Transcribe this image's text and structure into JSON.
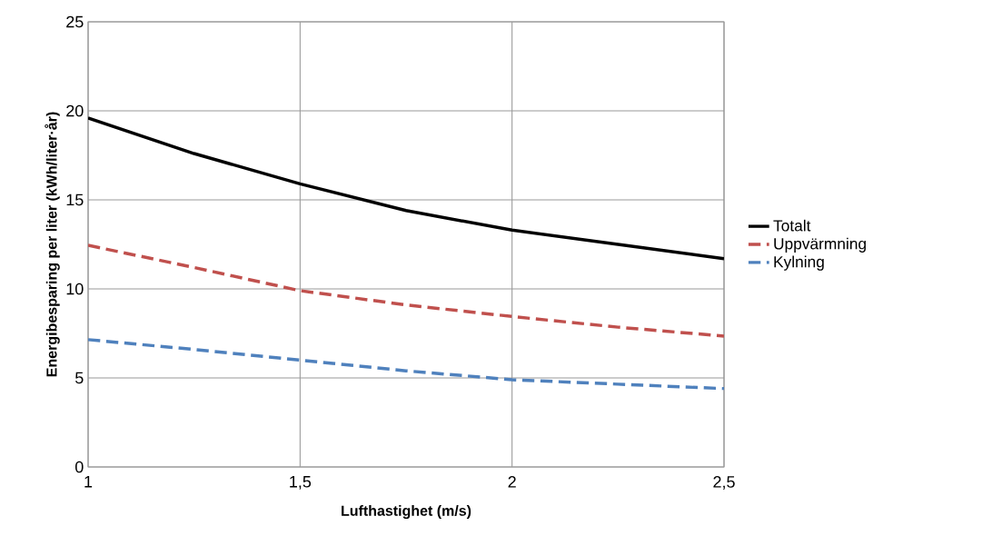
{
  "chart_data": {
    "type": "line",
    "xlabel": "Lufthastighet (m/s)",
    "ylabel": "Energibesparing per liter (kWh/liter·år)",
    "x": [
      1,
      1.25,
      1.5,
      1.75,
      2,
      2.25,
      2.5
    ],
    "series": [
      {
        "name": "Totalt",
        "color": "#000000",
        "line_style": "solid",
        "values": [
          19.6,
          17.6,
          15.9,
          14.4,
          13.3,
          12.5,
          11.7
        ]
      },
      {
        "name": "Uppvärmning",
        "color": "#c0504d",
        "line_style": "dashed",
        "values": [
          12.45,
          11.2,
          9.9,
          9.1,
          8.45,
          7.85,
          7.35
        ]
      },
      {
        "name": "Kylning",
        "color": "#4f81bd",
        "line_style": "dashed",
        "values": [
          7.15,
          6.6,
          6.0,
          5.4,
          4.9,
          4.65,
          4.4
        ]
      }
    ],
    "xlim": [
      1,
      2.5
    ],
    "xticks": [
      1,
      {
        "value": 1.5,
        "label": "1,5"
      },
      2,
      {
        "value": 2.5,
        "label": "2,5"
      }
    ],
    "ylim": [
      0,
      25
    ],
    "yticks": [
      0,
      5,
      10,
      15,
      20,
      25
    ],
    "grid": true,
    "legend": "right",
    "marker": "none"
  }
}
